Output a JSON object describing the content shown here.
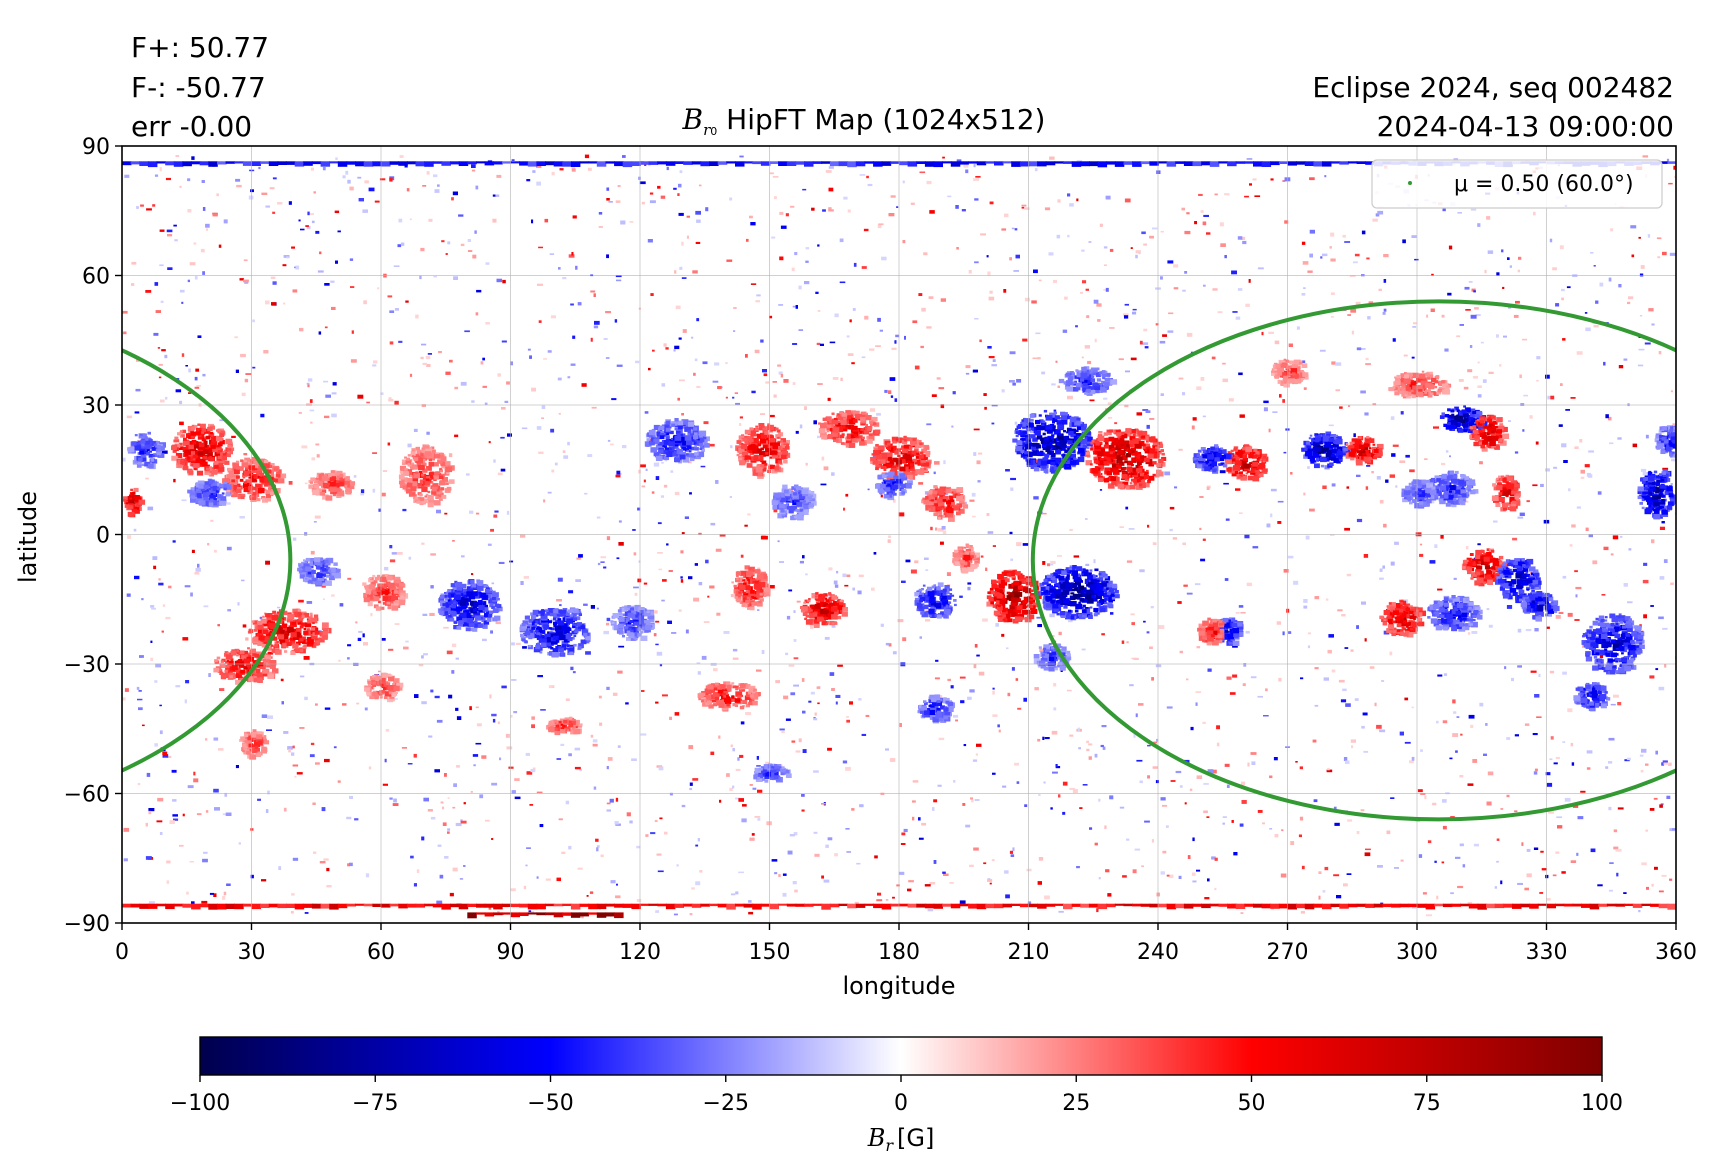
{
  "header": {
    "flux_pos": "F+: 50.77",
    "flux_neg": "F-: -50.77",
    "err": "err -0.00",
    "run": "Eclipse 2024, seq 002482",
    "datetime": "2024-04-13 09:00:00"
  },
  "chart_data": {
    "type": "heatmap",
    "title": {
      "symbol": "B",
      "subscript": "r",
      "subsub": "0",
      "text": " HipFT Map (1024x512)"
    },
    "xlabel": "longitude",
    "ylabel": "latitude",
    "xlim": [
      0,
      360
    ],
    "ylim": [
      -90,
      90
    ],
    "xticks": [
      0,
      30,
      60,
      90,
      120,
      150,
      180,
      210,
      240,
      270,
      300,
      330,
      360
    ],
    "yticks": [
      -90,
      -60,
      -30,
      0,
      30,
      60,
      90
    ],
    "ytick_labels": [
      "−90",
      "−60",
      "−30",
      "0",
      "30",
      "60",
      "90"
    ],
    "grid": true,
    "colormap": "seismic",
    "colors": {
      "min": "#00004c",
      "negative": "#0000ff",
      "zero": "#ffffff",
      "positive": "#ff0000",
      "max": "#7f0000",
      "contour": "#339933"
    },
    "colorbar": {
      "label_symbol": "B",
      "label_sub": "r",
      "label_unit": "[G]",
      "range": [
        -100,
        100
      ],
      "ticks": [
        -100,
        -75,
        -50,
        -25,
        0,
        25,
        50,
        75,
        100
      ],
      "tick_labels": [
        "−100",
        "−75",
        "−50",
        "−25",
        "0",
        "25",
        "50",
        "75",
        "100"
      ]
    },
    "legend": {
      "location": "upper right",
      "label": "μ = 0.50 (60.0°)"
    },
    "contour": {
      "name": "μ = 0.50 (60.0°)",
      "center_longitude": 305,
      "center_latitude": -6,
      "half_width_longitude": 94,
      "half_height_latitude": 60
    },
    "active_regions": [
      {
        "lon": 18,
        "lat": 20,
        "value": 80,
        "w": 7,
        "h": 6
      },
      {
        "lon": 30,
        "lat": 13,
        "value": 65,
        "w": 7,
        "h": 5
      },
      {
        "lon": 48,
        "lat": 12,
        "value": 55,
        "w": 5,
        "h": 3
      },
      {
        "lon": 70,
        "lat": 14,
        "value": 55,
        "w": 6,
        "h": 7
      },
      {
        "lon": 38,
        "lat": -22,
        "value": 80,
        "w": 9,
        "h": 5
      },
      {
        "lon": 28,
        "lat": -30,
        "value": 70,
        "w": 7,
        "h": 4
      },
      {
        "lon": 60,
        "lat": -13,
        "value": 55,
        "w": 5,
        "h": 4
      },
      {
        "lon": 80,
        "lat": -16,
        "value": -80,
        "w": 7,
        "h": 6
      },
      {
        "lon": 100,
        "lat": -22,
        "value": -75,
        "w": 8,
        "h": 6
      },
      {
        "lon": 118,
        "lat": -20,
        "value": -55,
        "w": 5,
        "h": 4
      },
      {
        "lon": 20,
        "lat": 10,
        "value": -60,
        "w": 5,
        "h": 3
      },
      {
        "lon": 5,
        "lat": 20,
        "value": -60,
        "w": 4,
        "h": 4
      },
      {
        "lon": 2,
        "lat": 8,
        "value": 90,
        "w": 2,
        "h": 3
      },
      {
        "lon": 45,
        "lat": -8,
        "value": -55,
        "w": 5,
        "h": 3
      },
      {
        "lon": 128,
        "lat": 22,
        "value": -65,
        "w": 7,
        "h": 5
      },
      {
        "lon": 148,
        "lat": 20,
        "value": 75,
        "w": 6,
        "h": 6
      },
      {
        "lon": 155,
        "lat": 8,
        "value": -50,
        "w": 5,
        "h": 4
      },
      {
        "lon": 168,
        "lat": 25,
        "value": 70,
        "w": 7,
        "h": 4
      },
      {
        "lon": 180,
        "lat": 18,
        "value": 80,
        "w": 7,
        "h": 5
      },
      {
        "lon": 178,
        "lat": 12,
        "value": -60,
        "w": 4,
        "h": 3
      },
      {
        "lon": 190,
        "lat": 8,
        "value": 65,
        "w": 5,
        "h": 4
      },
      {
        "lon": 215,
        "lat": 22,
        "value": -95,
        "w": 9,
        "h": 7
      },
      {
        "lon": 232,
        "lat": 18,
        "value": 95,
        "w": 9,
        "h": 7
      },
      {
        "lon": 223,
        "lat": 36,
        "value": -60,
        "w": 6,
        "h": 3
      },
      {
        "lon": 145,
        "lat": -12,
        "value": 65,
        "w": 4,
        "h": 5
      },
      {
        "lon": 162,
        "lat": -17,
        "value": 85,
        "w": 5,
        "h": 4
      },
      {
        "lon": 140,
        "lat": -37,
        "value": 65,
        "w": 7,
        "h": 3
      },
      {
        "lon": 188,
        "lat": -15,
        "value": -70,
        "w": 5,
        "h": 4
      },
      {
        "lon": 206,
        "lat": -14,
        "value": 100,
        "w": 6,
        "h": 6
      },
      {
        "lon": 221,
        "lat": -13,
        "value": -100,
        "w": 9,
        "h": 6
      },
      {
        "lon": 215,
        "lat": -28,
        "value": -55,
        "w": 4,
        "h": 3
      },
      {
        "lon": 188,
        "lat": -40,
        "value": -60,
        "w": 4,
        "h": 3
      },
      {
        "lon": 102,
        "lat": -44,
        "value": 55,
        "w": 4,
        "h": 2
      },
      {
        "lon": 60,
        "lat": -35,
        "value": 50,
        "w": 4,
        "h": 3
      },
      {
        "lon": 30,
        "lat": -48,
        "value": 55,
        "w": 3,
        "h": 3
      },
      {
        "lon": 150,
        "lat": -55,
        "value": -55,
        "w": 4,
        "h": 2
      },
      {
        "lon": 260,
        "lat": 17,
        "value": 90,
        "w": 5,
        "h": 4
      },
      {
        "lon": 252,
        "lat": 18,
        "value": -80,
        "w": 4,
        "h": 3
      },
      {
        "lon": 278,
        "lat": 20,
        "value": -95,
        "w": 5,
        "h": 4
      },
      {
        "lon": 287,
        "lat": 20,
        "value": 90,
        "w": 4,
        "h": 3
      },
      {
        "lon": 310,
        "lat": 27,
        "value": -100,
        "w": 5,
        "h": 3
      },
      {
        "lon": 316,
        "lat": 24,
        "value": 85,
        "w": 4,
        "h": 4
      },
      {
        "lon": 320,
        "lat": 10,
        "value": 80,
        "w": 3,
        "h": 4
      },
      {
        "lon": 307,
        "lat": 11,
        "value": -60,
        "w": 6,
        "h": 4
      },
      {
        "lon": 300,
        "lat": 35,
        "value": 55,
        "w": 7,
        "h": 3
      },
      {
        "lon": 355,
        "lat": 10,
        "value": -90,
        "w": 4,
        "h": 6
      },
      {
        "lon": 358,
        "lat": 22,
        "value": -60,
        "w": 3,
        "h": 4
      },
      {
        "lon": 256,
        "lat": -22,
        "value": -80,
        "w": 3,
        "h": 3
      },
      {
        "lon": 252,
        "lat": -22,
        "value": 70,
        "w": 3,
        "h": 3
      },
      {
        "lon": 296,
        "lat": -19,
        "value": 85,
        "w": 5,
        "h": 4
      },
      {
        "lon": 315,
        "lat": -7,
        "value": 85,
        "w": 5,
        "h": 4
      },
      {
        "lon": 323,
        "lat": -10,
        "value": -85,
        "w": 5,
        "h": 5
      },
      {
        "lon": 308,
        "lat": -18,
        "value": -65,
        "w": 6,
        "h": 4
      },
      {
        "lon": 328,
        "lat": -16,
        "value": -80,
        "w": 4,
        "h": 3
      },
      {
        "lon": 345,
        "lat": -25,
        "value": -80,
        "w": 7,
        "h": 7
      },
      {
        "lon": 340,
        "lat": -37,
        "value": -75,
        "w": 4,
        "h": 3
      },
      {
        "lon": 300,
        "lat": 10,
        "value": -55,
        "w": 4,
        "h": 3
      },
      {
        "lon": 270,
        "lat": 38,
        "value": 50,
        "w": 4,
        "h": 3
      },
      {
        "lon": 195,
        "lat": -5,
        "value": 50,
        "w": 3,
        "h": 3
      }
    ],
    "polar_bands": [
      {
        "lat": 86,
        "lon_from": 0,
        "lon_to": 360,
        "value": -60
      },
      {
        "lat": -86,
        "lon_from": 0,
        "lon_to": 360,
        "value": 65
      },
      {
        "lat": -88,
        "lon_from": 80,
        "lon_to": 115,
        "value": 100
      }
    ]
  }
}
